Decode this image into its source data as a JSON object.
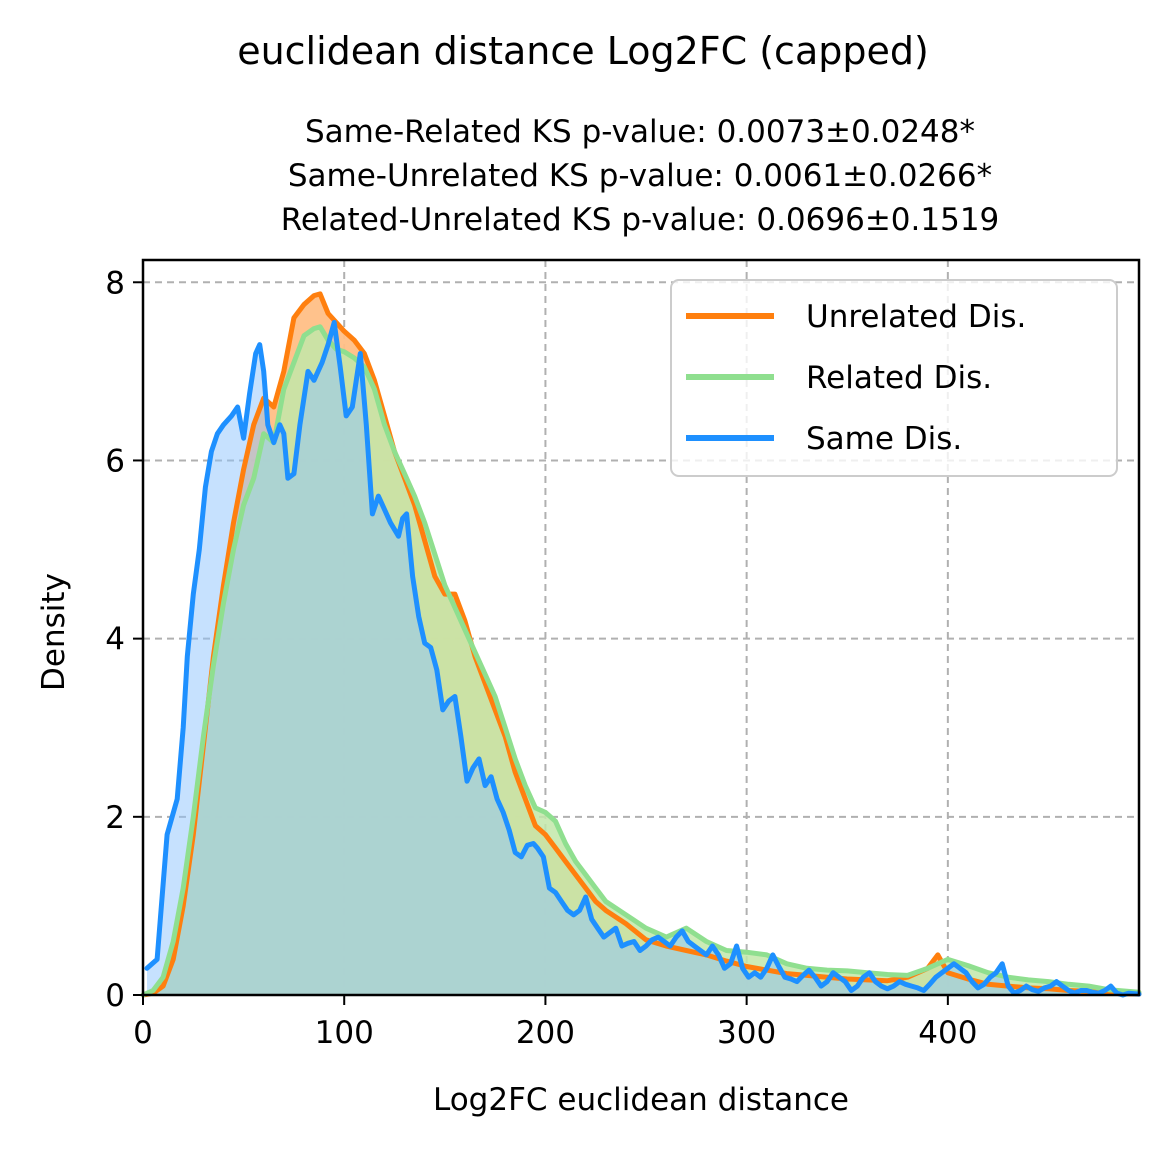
{
  "chart_data": {
    "type": "area",
    "title": "euclidean distance Log2FC (capped)",
    "subtitle_lines": [
      "Same-Related KS p-value: 0.0073±0.0248*",
      "Same-Unrelated KS p-value: 0.0061±0.0266*",
      "Related-Unrelated KS p-value: 0.0696±0.1519"
    ],
    "xlabel": "Log2FC euclidean distance",
    "ylabel": "Density",
    "xlim": [
      0,
      495
    ],
    "ylim": [
      0,
      8.25
    ],
    "xticks": [
      0,
      100,
      200,
      300,
      400
    ],
    "yticks": [
      0,
      2,
      4,
      6,
      8
    ],
    "grid": true,
    "legend_position": "top-right",
    "series": [
      {
        "name": "Unrelated Dis.",
        "color": "#ff7f0e",
        "fill": "#ffbf86",
        "x": [
          0,
          5,
          10,
          15,
          20,
          25,
          30,
          35,
          40,
          45,
          50,
          55,
          60,
          65,
          70,
          75,
          80,
          85,
          88,
          92,
          96,
          100,
          105,
          110,
          115,
          120,
          125,
          130,
          135,
          140,
          145,
          150,
          155,
          160,
          165,
          170,
          175,
          180,
          185,
          190,
          195,
          200,
          205,
          210,
          215,
          220,
          225,
          230,
          240,
          250,
          260,
          270,
          280,
          290,
          300,
          310,
          320,
          330,
          340,
          350,
          360,
          370,
          380,
          390,
          395,
          400,
          410,
          420,
          430,
          440,
          450,
          460,
          470,
          480,
          495
        ],
        "values": [
          0,
          0.02,
          0.1,
          0.4,
          1.0,
          1.8,
          2.8,
          3.8,
          4.6,
          5.3,
          5.9,
          6.4,
          6.7,
          6.6,
          7.0,
          7.6,
          7.75,
          7.85,
          7.87,
          7.65,
          7.55,
          7.45,
          7.35,
          7.2,
          6.9,
          6.5,
          6.1,
          5.8,
          5.5,
          5.1,
          4.7,
          4.5,
          4.5,
          4.2,
          3.8,
          3.5,
          3.2,
          2.9,
          2.5,
          2.2,
          1.9,
          1.8,
          1.65,
          1.5,
          1.35,
          1.2,
          1.05,
          0.95,
          0.8,
          0.62,
          0.55,
          0.5,
          0.45,
          0.38,
          0.32,
          0.28,
          0.24,
          0.22,
          0.2,
          0.18,
          0.17,
          0.16,
          0.2,
          0.3,
          0.45,
          0.25,
          0.18,
          0.12,
          0.1,
          0.08,
          0.07,
          0.05,
          0.04,
          0.02,
          0.01
        ]
      },
      {
        "name": "Related Dis.",
        "color": "#8fdf8f",
        "fill": "#c2e7a9",
        "x": [
          0,
          5,
          10,
          15,
          20,
          25,
          30,
          35,
          40,
          45,
          50,
          55,
          60,
          65,
          70,
          75,
          80,
          85,
          88,
          92,
          96,
          100,
          105,
          110,
          115,
          120,
          125,
          130,
          135,
          140,
          145,
          150,
          155,
          160,
          165,
          170,
          175,
          180,
          185,
          190,
          195,
          200,
          205,
          210,
          215,
          220,
          225,
          230,
          240,
          250,
          260,
          270,
          280,
          290,
          300,
          310,
          320,
          330,
          340,
          350,
          360,
          370,
          380,
          390,
          400,
          410,
          420,
          430,
          440,
          450,
          460,
          470,
          480,
          495
        ],
        "values": [
          0,
          0.05,
          0.2,
          0.6,
          1.2,
          2.0,
          2.9,
          3.7,
          4.4,
          5.0,
          5.5,
          5.8,
          6.3,
          6.2,
          6.8,
          7.1,
          7.4,
          7.48,
          7.5,
          7.35,
          7.25,
          7.22,
          7.15,
          7.05,
          6.8,
          6.4,
          6.1,
          5.85,
          5.6,
          5.3,
          4.95,
          4.6,
          4.35,
          4.1,
          3.85,
          3.6,
          3.35,
          3.0,
          2.65,
          2.35,
          2.1,
          2.05,
          1.95,
          1.7,
          1.5,
          1.35,
          1.2,
          1.05,
          0.9,
          0.75,
          0.65,
          0.75,
          0.6,
          0.5,
          0.48,
          0.45,
          0.35,
          0.3,
          0.28,
          0.27,
          0.25,
          0.23,
          0.22,
          0.3,
          0.4,
          0.33,
          0.25,
          0.2,
          0.17,
          0.15,
          0.12,
          0.1,
          0.06,
          0.03
        ]
      },
      {
        "name": "Same Dis.",
        "color": "#1e90ff",
        "fill": "#8ec3fd",
        "x": [
          2,
          7,
          12,
          17,
          20,
          22,
          25,
          28,
          31,
          34,
          37,
          40,
          44,
          47,
          50,
          53,
          56,
          58,
          60,
          62,
          65,
          68,
          70,
          72,
          75,
          78,
          82,
          85,
          89,
          92,
          95,
          98,
          101,
          104,
          108,
          111,
          114,
          117,
          120,
          123,
          127,
          129,
          131,
          134,
          137,
          140,
          143,
          146,
          149,
          152,
          155,
          158,
          161,
          164,
          167,
          170,
          173,
          176,
          179,
          182,
          185,
          188,
          191,
          194,
          196,
          199,
          202,
          205,
          208,
          211,
          214,
          217,
          220,
          223,
          226,
          229,
          232,
          235,
          238,
          241,
          244,
          247,
          250,
          253,
          256,
          259,
          262,
          265,
          268,
          271,
          274,
          277,
          280,
          283,
          286,
          289,
          292,
          295,
          298,
          301,
          304,
          307,
          310,
          313,
          316,
          319,
          322,
          325,
          328,
          331,
          334,
          337,
          340,
          343,
          346,
          349,
          352,
          355,
          358,
          361,
          364,
          367,
          370,
          373,
          376,
          379,
          382,
          385,
          388,
          391,
          394,
          397,
          400,
          403,
          406,
          409,
          412,
          415,
          418,
          421,
          424,
          427,
          430,
          433,
          436,
          439,
          442,
          445,
          448,
          451,
          454,
          457,
          460,
          463,
          466,
          469,
          472,
          475,
          478,
          481,
          484,
          487,
          490,
          495
        ],
        "values": [
          0.3,
          0.4,
          1.8,
          2.2,
          3.0,
          3.8,
          4.5,
          5.0,
          5.7,
          6.1,
          6.3,
          6.4,
          6.5,
          6.6,
          6.25,
          6.75,
          7.2,
          7.3,
          7.0,
          6.4,
          6.2,
          6.4,
          6.3,
          5.8,
          5.85,
          6.4,
          7.0,
          6.9,
          7.1,
          7.3,
          7.55,
          7.05,
          6.5,
          6.6,
          7.2,
          6.4,
          5.4,
          5.6,
          5.45,
          5.3,
          5.15,
          5.35,
          5.4,
          4.7,
          4.25,
          3.95,
          3.9,
          3.65,
          3.2,
          3.3,
          3.35,
          2.9,
          2.4,
          2.55,
          2.65,
          2.35,
          2.45,
          2.2,
          2.05,
          1.85,
          1.6,
          1.55,
          1.68,
          1.7,
          1.65,
          1.55,
          1.2,
          1.15,
          1.05,
          0.95,
          0.9,
          0.95,
          1.1,
          0.85,
          0.75,
          0.65,
          0.7,
          0.75,
          0.55,
          0.58,
          0.6,
          0.5,
          0.55,
          0.62,
          0.65,
          0.6,
          0.55,
          0.65,
          0.72,
          0.6,
          0.55,
          0.5,
          0.45,
          0.55,
          0.45,
          0.3,
          0.35,
          0.55,
          0.3,
          0.2,
          0.25,
          0.2,
          0.3,
          0.45,
          0.32,
          0.2,
          0.18,
          0.15,
          0.22,
          0.28,
          0.2,
          0.1,
          0.15,
          0.25,
          0.2,
          0.15,
          0.05,
          0.1,
          0.2,
          0.25,
          0.15,
          0.1,
          0.07,
          0.1,
          0.15,
          0.12,
          0.1,
          0.08,
          0.05,
          0.12,
          0.2,
          0.25,
          0.3,
          0.35,
          0.3,
          0.25,
          0.15,
          0.08,
          0.12,
          0.2,
          0.25,
          0.35,
          0.1,
          0.02,
          0.05,
          0.1,
          0.06,
          0.04,
          0.08,
          0.1,
          0.15,
          0.1,
          0.05,
          0.02,
          0.05,
          0.05,
          0.03,
          0.02,
          0.05,
          0.1,
          0.02,
          0.0,
          0.02,
          0.01
        ]
      }
    ]
  }
}
